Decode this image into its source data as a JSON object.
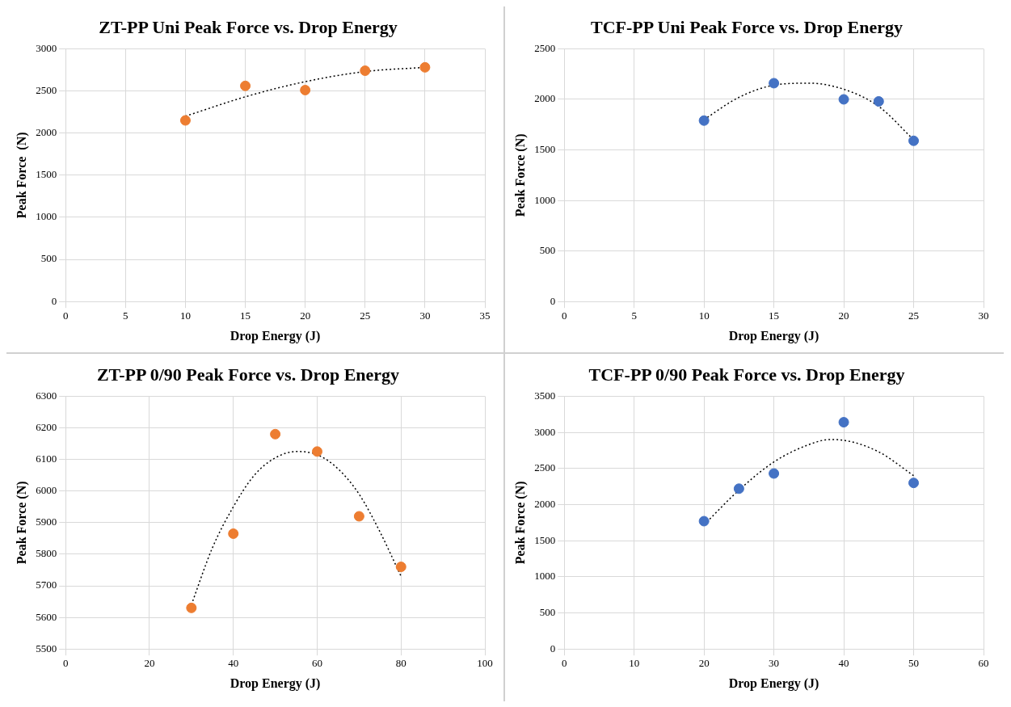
{
  "chart_data": [
    {
      "type": "scatter",
      "title": "ZT-PP Uni Peak Force vs. Drop Energy",
      "xlabel": "Drop Energy (J)",
      "ylabel": "Peak Force  (N)",
      "xlim": [
        0,
        35
      ],
      "xticks": [
        0,
        5,
        10,
        15,
        20,
        25,
        30,
        35
      ],
      "ylim": [
        0,
        3000
      ],
      "yticks": [
        0,
        500,
        1000,
        1500,
        2000,
        2500,
        3000
      ],
      "grid": true,
      "legend": false,
      "marker": "circle",
      "series": [
        {
          "type": "scatter",
          "color": "#ed7d31",
          "x": [
            10,
            15,
            20,
            25,
            30
          ],
          "values": [
            2150,
            2560,
            2510,
            2740,
            2780
          ]
        },
        {
          "type": "line",
          "color": "#000000",
          "line_style": "dotted",
          "marker": "none",
          "x": [
            10,
            15,
            20,
            25,
            30
          ],
          "values": [
            2200,
            2430,
            2610,
            2730,
            2780
          ]
        }
      ]
    },
    {
      "type": "scatter",
      "title": "TCF-PP Uni Peak Force vs. Drop Energy",
      "xlabel": "Drop Energy (J)",
      "ylabel": "Peak Force (N)",
      "xlim": [
        0,
        30
      ],
      "xticks": [
        0,
        5,
        10,
        15,
        20,
        25,
        30
      ],
      "ylim": [
        0,
        2500
      ],
      "yticks": [
        0,
        500,
        1000,
        1500,
        2000,
        2500
      ],
      "grid": true,
      "legend": false,
      "marker": "circle",
      "series": [
        {
          "type": "scatter",
          "color": "#4472c4",
          "x": [
            10,
            15,
            20,
            22.5,
            25
          ],
          "values": [
            1790,
            2160,
            2000,
            1980,
            1590
          ]
        },
        {
          "type": "line",
          "color": "#000000",
          "line_style": "dotted",
          "marker": "none",
          "x": [
            10,
            12.5,
            15,
            17.5,
            20,
            22.5,
            25
          ],
          "values": [
            1800,
            2020,
            2140,
            2160,
            2100,
            1930,
            1600
          ]
        }
      ]
    },
    {
      "type": "scatter",
      "title": "ZT-PP 0/90 Peak Force vs. Drop Energy",
      "xlabel": "Drop Energy (J)",
      "ylabel": "Peak Force (N)",
      "xlim": [
        0,
        100
      ],
      "xticks": [
        0,
        20,
        40,
        60,
        80,
        100
      ],
      "ylim": [
        5500,
        6300
      ],
      "yticks": [
        5500,
        5600,
        5700,
        5800,
        5900,
        6000,
        6100,
        6200,
        6300
      ],
      "grid": true,
      "legend": false,
      "marker": "circle",
      "series": [
        {
          "type": "scatter",
          "color": "#ed7d31",
          "x": [
            30,
            40,
            50,
            60,
            70,
            80
          ],
          "values": [
            5630,
            5865,
            6180,
            6125,
            5920,
            5760
          ]
        },
        {
          "type": "line",
          "color": "#000000",
          "line_style": "dotted",
          "marker": "none",
          "x": [
            30,
            35,
            40,
            45,
            50,
            55,
            60,
            65,
            70,
            75,
            80
          ],
          "values": [
            5640,
            5820,
            5950,
            6050,
            6105,
            6125,
            6115,
            6070,
            5990,
            5870,
            5730
          ]
        }
      ]
    },
    {
      "type": "scatter",
      "title": "TCF-PP 0/90 Peak Force vs. Drop Energy",
      "xlabel": "Drop Energy (J)",
      "ylabel": "Peak Force (N)",
      "xlim": [
        0,
        60
      ],
      "xticks": [
        0,
        10,
        20,
        30,
        40,
        50,
        60
      ],
      "ylim": [
        0,
        3500
      ],
      "yticks": [
        0,
        500,
        1000,
        1500,
        2000,
        2500,
        3000,
        3500
      ],
      "grid": true,
      "legend": false,
      "marker": "circle",
      "series": [
        {
          "type": "scatter",
          "color": "#4472c4",
          "x": [
            20,
            25,
            30,
            40,
            50
          ],
          "values": [
            1770,
            2220,
            2430,
            3140,
            2300
          ]
        },
        {
          "type": "line",
          "color": "#000000",
          "line_style": "dotted",
          "marker": "none",
          "x": [
            20,
            25,
            30,
            35,
            38,
            40,
            45,
            50
          ],
          "values": [
            1720,
            2200,
            2590,
            2830,
            2900,
            2890,
            2730,
            2400
          ]
        }
      ]
    }
  ]
}
